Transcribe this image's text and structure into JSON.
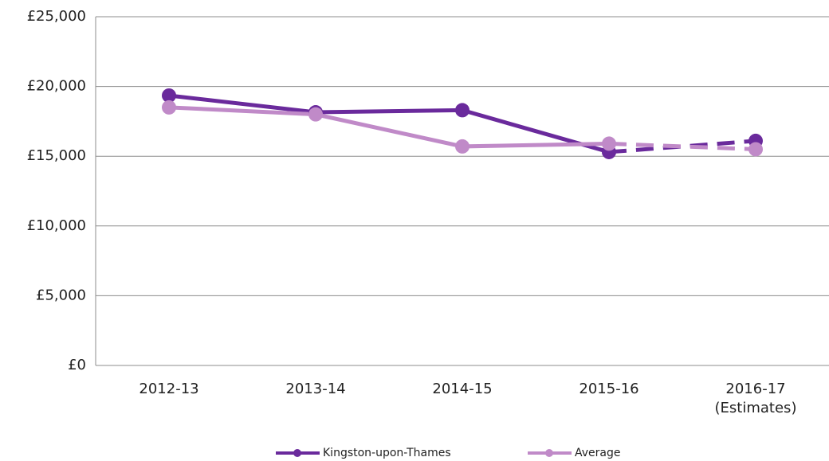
{
  "chart_data": {
    "type": "line",
    "categories": [
      "2012-13",
      "2013-14",
      "2014-15",
      "2015-16",
      "2016-17\n(Estimates)"
    ],
    "series": [
      {
        "name": "Kingston-upon-Thames",
        "color": "#6a2a9c",
        "values": [
          19350,
          18150,
          18300,
          15300,
          16100
        ]
      },
      {
        "name": "Average",
        "color": "#c08ac8",
        "values": [
          18500,
          18000,
          15700,
          15900,
          15500
        ]
      }
    ],
    "dashed_from": "2015-16",
    "ylim": [
      0,
      25000
    ],
    "yticks": [
      {
        "value": 0,
        "label": "£0"
      },
      {
        "value": 5000,
        "label": "£5,000"
      },
      {
        "value": 10000,
        "label": "£10,000"
      },
      {
        "value": 15000,
        "label": "£15,000"
      },
      {
        "value": 20000,
        "label": "£20,000"
      },
      {
        "value": 25000,
        "label": "£25,000"
      }
    ],
    "grid": true,
    "legend": "bottom"
  }
}
